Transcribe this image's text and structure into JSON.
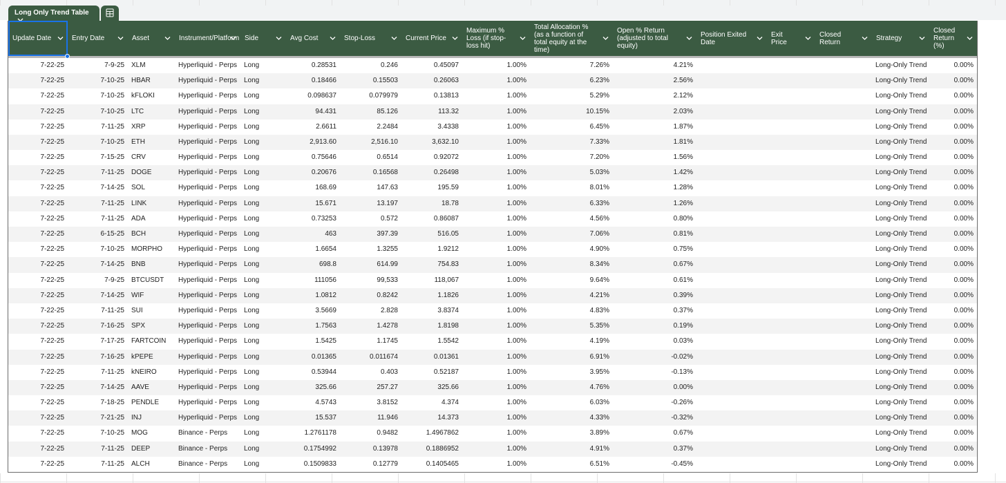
{
  "tab": {
    "title": "Long Only Trend Table"
  },
  "table": {
    "headers": [
      "Update Date",
      "Entry Date",
      "Asset",
      "Instrument/Platform",
      "Side",
      "Avg Cost",
      "Stop-Loss",
      "Current Price",
      "Maximum % Loss (if stop-loss hit)",
      "Total Allocation % (as a function of total equity at the time)",
      "Open % Return (adjusted to total equity)",
      "Position Exited Date",
      "Exit Price",
      "Closed Return",
      "Strategy",
      "Closed Return (%)"
    ],
    "rows": [
      [
        "7-22-25",
        "7-9-25",
        "XLM",
        "Hyperliquid - Perps",
        "Long",
        "0.28531",
        "0.246",
        "0.45097",
        "1.00%",
        "7.26%",
        "4.21%",
        null,
        null,
        null,
        "Long-Only Trend",
        "0.00%"
      ],
      [
        "7-22-25",
        "7-10-25",
        "HBAR",
        "Hyperliquid - Perps",
        "Long",
        "0.18466",
        "0.15503",
        "0.26063",
        "1.00%",
        "6.23%",
        "2.56%",
        null,
        null,
        null,
        "Long-Only Trend",
        "0.00%"
      ],
      [
        "7-22-25",
        "7-10-25",
        "kFLOKI",
        "Hyperliquid - Perps",
        "Long",
        "0.098637",
        "0.079979",
        "0.13813",
        "1.00%",
        "5.29%",
        "2.12%",
        null,
        null,
        null,
        "Long-Only Trend",
        "0.00%"
      ],
      [
        "7-22-25",
        "7-10-25",
        "LTC",
        "Hyperliquid - Perps",
        "Long",
        "94.431",
        "85.126",
        "113.32",
        "1.00%",
        "10.15%",
        "2.03%",
        null,
        null,
        null,
        "Long-Only Trend",
        "0.00%"
      ],
      [
        "7-22-25",
        "7-11-25",
        "XRP",
        "Hyperliquid - Perps",
        "Long",
        "2.6611",
        "2.2484",
        "3.4338",
        "1.00%",
        "6.45%",
        "1.87%",
        null,
        null,
        null,
        "Long-Only Trend",
        "0.00%"
      ],
      [
        "7-22-25",
        "7-10-25",
        "ETH",
        "Hyperliquid - Perps",
        "Long",
        "2,913.60",
        "2,516.10",
        "3,632.10",
        "1.00%",
        "7.33%",
        "1.81%",
        null,
        null,
        null,
        "Long-Only Trend",
        "0.00%"
      ],
      [
        "7-22-25",
        "7-15-25",
        "CRV",
        "Hyperliquid - Perps",
        "Long",
        "0.75646",
        "0.6514",
        "0.92072",
        "1.00%",
        "7.20%",
        "1.56%",
        null,
        null,
        null,
        "Long-Only Trend",
        "0.00%"
      ],
      [
        "7-22-25",
        "7-11-25",
        "DOGE",
        "Hyperliquid - Perps",
        "Long",
        "0.20676",
        "0.16568",
        "0.26498",
        "1.00%",
        "5.03%",
        "1.42%",
        null,
        null,
        null,
        "Long-Only Trend",
        "0.00%"
      ],
      [
        "7-22-25",
        "7-14-25",
        "SOL",
        "Hyperliquid - Perps",
        "Long",
        "168.69",
        "147.63",
        "195.59",
        "1.00%",
        "8.01%",
        "1.28%",
        null,
        null,
        null,
        "Long-Only Trend",
        "0.00%"
      ],
      [
        "7-22-25",
        "7-11-25",
        "LINK",
        "Hyperliquid - Perps",
        "Long",
        "15.671",
        "13.197",
        "18.78",
        "1.00%",
        "6.33%",
        "1.26%",
        null,
        null,
        null,
        "Long-Only Trend",
        "0.00%"
      ],
      [
        "7-22-25",
        "7-11-25",
        "ADA",
        "Hyperliquid - Perps",
        "Long",
        "0.73253",
        "0.572",
        "0.86087",
        "1.00%",
        "4.56%",
        "0.80%",
        null,
        null,
        null,
        "Long-Only Trend",
        "0.00%"
      ],
      [
        "7-22-25",
        "6-15-25",
        "BCH",
        "Hyperliquid - Perps",
        "Long",
        "463",
        "397.39",
        "516.05",
        "1.00%",
        "7.06%",
        "0.81%",
        null,
        null,
        null,
        "Long-Only Trend",
        "0.00%"
      ],
      [
        "7-22-25",
        "7-10-25",
        "MORPHO",
        "Hyperliquid - Perps",
        "Long",
        "1.6654",
        "1.3255",
        "1.9212",
        "1.00%",
        "4.90%",
        "0.75%",
        null,
        null,
        null,
        "Long-Only Trend",
        "0.00%"
      ],
      [
        "7-22-25",
        "7-14-25",
        "BNB",
        "Hyperliquid - Perps",
        "Long",
        "698.8",
        "614.99",
        "754.83",
        "1.00%",
        "8.34%",
        "0.67%",
        null,
        null,
        null,
        "Long-Only Trend",
        "0.00%"
      ],
      [
        "7-22-25",
        "7-9-25",
        "BTCUSDT",
        "Hyperliquid - Perps",
        "Long",
        "111056",
        "99,533",
        "118,067",
        "1.00%",
        "9.64%",
        "0.61%",
        null,
        null,
        null,
        "Long-Only Trend",
        "0.00%"
      ],
      [
        "7-22-25",
        "7-14-25",
        "WIF",
        "Hyperliquid - Perps",
        "Long",
        "1.0812",
        "0.8242",
        "1.1826",
        "1.00%",
        "4.21%",
        "0.39%",
        null,
        null,
        null,
        "Long-Only Trend",
        "0.00%"
      ],
      [
        "7-22-25",
        "7-11-25",
        "SUI",
        "Hyperliquid - Perps",
        "Long",
        "3.5669",
        "2.828",
        "3.8374",
        "1.00%",
        "4.83%",
        "0.37%",
        null,
        null,
        null,
        "Long-Only Trend",
        "0.00%"
      ],
      [
        "7-22-25",
        "7-16-25",
        "SPX",
        "Hyperliquid - Perps",
        "Long",
        "1.7563",
        "1.4278",
        "1.8198",
        "1.00%",
        "5.35%",
        "0.19%",
        null,
        null,
        null,
        "Long-Only Trend",
        "0.00%"
      ],
      [
        "7-22-25",
        "7-17-25",
        "FARTCOIN",
        "Hyperliquid - Perps",
        "Long",
        "1.5425",
        "1.1745",
        "1.5542",
        "1.00%",
        "4.19%",
        "0.03%",
        null,
        null,
        null,
        "Long-Only Trend",
        "0.00%"
      ],
      [
        "7-22-25",
        "7-16-25",
        "kPEPE",
        "Hyperliquid - Perps",
        "Long",
        "0.01365",
        "0.011674",
        "0.01361",
        "1.00%",
        "6.91%",
        "-0.02%",
        null,
        null,
        null,
        "Long-Only Trend",
        "0.00%"
      ],
      [
        "7-22-25",
        "7-11-25",
        "kNEIRO",
        "Hyperliquid - Perps",
        "Long",
        "0.53944",
        "0.403",
        "0.52187",
        "1.00%",
        "3.95%",
        "-0.13%",
        null,
        null,
        null,
        "Long-Only Trend",
        "0.00%"
      ],
      [
        "7-22-25",
        "7-14-25",
        "AAVE",
        "Hyperliquid - Perps",
        "Long",
        "325.66",
        "257.27",
        "325.66",
        "1.00%",
        "4.76%",
        "0.00%",
        null,
        null,
        null,
        "Long-Only Trend",
        "0.00%"
      ],
      [
        "7-22-25",
        "7-18-25",
        "PENDLE",
        "Hyperliquid - Perps",
        "Long",
        "4.5743",
        "3.8152",
        "4.374",
        "1.00%",
        "6.03%",
        "-0.26%",
        null,
        null,
        null,
        "Long-Only Trend",
        "0.00%"
      ],
      [
        "7-22-25",
        "7-21-25",
        "INJ",
        "Hyperliquid - Perps",
        "Long",
        "15.537",
        "11.946",
        "14.373",
        "1.00%",
        "4.33%",
        "-0.32%",
        null,
        null,
        null,
        "Long-Only Trend",
        "0.00%"
      ],
      [
        "7-22-25",
        "7-10-25",
        "MOG",
        "Binance - Perps",
        "Long",
        "1.2761178",
        "0.9482",
        "1.4967862",
        "1.00%",
        "3.89%",
        "0.67%",
        null,
        null,
        null,
        "Long-Only Trend",
        "0.00%"
      ],
      [
        "7-22-25",
        "7-11-25",
        "DEEP",
        "Binance - Perps",
        "Long",
        "0.1754992",
        "0.13978",
        "0.1886952",
        "1.00%",
        "4.91%",
        "0.37%",
        null,
        null,
        null,
        "Long-Only Trend",
        "0.00%"
      ],
      [
        "7-22-25",
        "7-11-25",
        "ALCH",
        "Binance - Perps",
        "Long",
        "0.1509833",
        "0.12779",
        "0.1405465",
        "1.00%",
        "6.51%",
        "-0.45%",
        null,
        null,
        null,
        "Long-Only Trend",
        "0.00%"
      ]
    ]
  }
}
